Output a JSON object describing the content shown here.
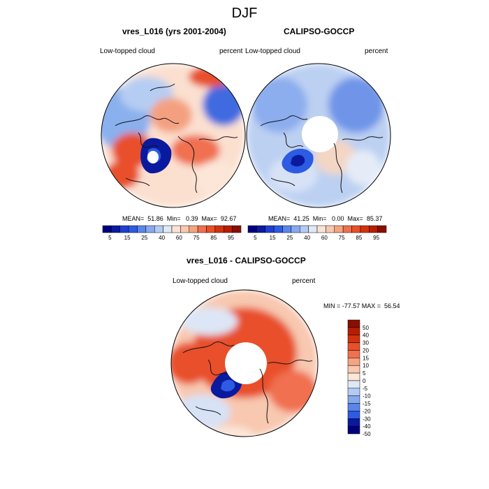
{
  "page_title": "DJF",
  "panels": [
    {
      "title": "vres_L016 (yrs 2001-2004)",
      "left_label": "Low-topped cloud",
      "right_label": "percent",
      "stats": "MEAN=  51.86  Min=   0.39  Max=  92.67"
    },
    {
      "title": "CALIPSO-GOCCP",
      "left_label": "Low-topped cloud",
      "right_label": "percent",
      "stats": "MEAN=  41.25  Min=   0.00  Max=  85.37"
    },
    {
      "title": "vres_L016 - CALIPSO-GOCCP",
      "left_label": "Low-topped cloud",
      "right_label": "percent",
      "stats": "MIN = -77.57 MAX =  56.54"
    }
  ],
  "colors": {
    "deep_blue": "#0a1a9e",
    "blue": "#2d5be3",
    "light_blue": "#a9c6f2",
    "white": "#ffffff",
    "light_red": "#f8c8b0",
    "red": "#e8502a",
    "dark_red": "#9c1200"
  },
  "chart_data": [
    {
      "type": "heatmap",
      "title": "vres_L016 (yrs 2001-2004)",
      "variable": "Low-topped cloud",
      "units": "percent",
      "projection": "north polar stereographic",
      "mean": 51.86,
      "min": 0.39,
      "max": 92.67,
      "colorbar_levels": [
        5,
        10,
        15,
        20,
        25,
        30,
        35,
        40,
        50,
        60,
        65,
        70,
        75,
        80,
        85,
        90,
        95
      ],
      "colorbar_tick_labels": [
        "5",
        "15",
        "25",
        "40",
        "60",
        "75",
        "85",
        "95"
      ]
    },
    {
      "type": "heatmap",
      "title": "CALIPSO-GOCCP",
      "variable": "Low-topped cloud",
      "units": "percent",
      "projection": "north polar stereographic",
      "mean": 41.25,
      "min": 0.0,
      "max": 85.37,
      "colorbar_levels": [
        5,
        10,
        15,
        20,
        25,
        30,
        35,
        40,
        50,
        60,
        65,
        70,
        75,
        80,
        85,
        90,
        95
      ],
      "colorbar_tick_labels": [
        "5",
        "15",
        "25",
        "40",
        "60",
        "75",
        "85",
        "95"
      ]
    },
    {
      "type": "heatmap",
      "title": "vres_L016 - CALIPSO-GOCCP",
      "variable": "Low-topped cloud",
      "units": "percent",
      "projection": "north polar stereographic",
      "min": -77.57,
      "max": 56.54,
      "colorbar_levels": [
        50,
        40,
        30,
        20,
        15,
        10,
        5,
        0,
        -5,
        -10,
        -15,
        -20,
        -30,
        -40,
        -50
      ],
      "colorbar_tick_labels": [
        "50",
        "40",
        "30",
        "20",
        "15",
        "10",
        "5",
        "0",
        "-5",
        "-10",
        "-15",
        "-20",
        "-30",
        "-40",
        "-50"
      ]
    }
  ]
}
